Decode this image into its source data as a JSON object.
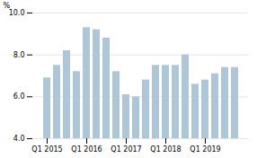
{
  "chart_data": {
    "type": "bar",
    "categories": [
      "Q1 2015",
      null,
      null,
      null,
      "Q1 2016",
      null,
      null,
      null,
      "Q1 2017",
      null,
      null,
      null,
      "Q1 2018",
      null,
      null,
      null,
      "Q1 2019",
      null,
      null,
      null
    ],
    "values": [
      6.9,
      7.5,
      8.2,
      7.2,
      9.3,
      9.2,
      8.8,
      7.2,
      6.1,
      6.0,
      6.8,
      7.5,
      7.5,
      7.5,
      8.0,
      6.6,
      6.8,
      7.1,
      7.4,
      7.4
    ],
    "color": "#adc6d8",
    "ylabel": "%",
    "ylim": [
      4.0,
      10.0
    ],
    "yticks": [
      {
        "value": 4.0,
        "label": "4.0"
      },
      {
        "value": 6.0,
        "label": "6.0"
      },
      {
        "value": 8.0,
        "label": "8.0"
      },
      {
        "value": 10.0,
        "label": "10.0"
      }
    ],
    "grid": true
  }
}
